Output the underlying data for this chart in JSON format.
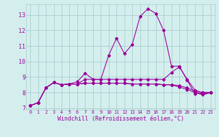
{
  "xlabel": "Windchill (Refroidissement éolien,°C)",
  "xlim": [
    -0.5,
    23.5
  ],
  "ylim": [
    6.9,
    13.7
  ],
  "yticks": [
    7,
    8,
    9,
    10,
    11,
    12,
    13
  ],
  "xticks": [
    0,
    1,
    2,
    3,
    4,
    5,
    6,
    7,
    8,
    9,
    10,
    11,
    12,
    13,
    14,
    15,
    16,
    17,
    18,
    19,
    20,
    21,
    22,
    23
  ],
  "bg_color": "#d4eeee",
  "grid_color": "#aacccc",
  "line_color": "#990099",
  "curves": [
    [
      7.15,
      7.35,
      8.3,
      8.65,
      8.5,
      8.55,
      8.55,
      8.85,
      8.85,
      8.85,
      10.4,
      11.5,
      10.5,
      11.1,
      12.9,
      13.4,
      13.1,
      12.0,
      9.7,
      9.7,
      8.8,
      7.9,
      8.0,
      8.0
    ],
    [
      7.15,
      7.35,
      8.3,
      8.65,
      8.5,
      8.55,
      8.7,
      9.25,
      8.85,
      8.85,
      8.85,
      8.85,
      8.85,
      8.85,
      8.85,
      8.85,
      8.85,
      8.85,
      9.3,
      9.65,
      8.85,
      8.15,
      8.0,
      8.0
    ],
    [
      7.15,
      7.35,
      8.3,
      8.65,
      8.5,
      8.55,
      8.55,
      8.6,
      8.6,
      8.6,
      8.6,
      8.6,
      8.6,
      8.55,
      8.55,
      8.55,
      8.55,
      8.5,
      8.5,
      8.45,
      8.3,
      8.1,
      7.9,
      8.0
    ],
    [
      7.15,
      7.35,
      8.3,
      8.65,
      8.5,
      8.55,
      8.55,
      8.6,
      8.6,
      8.6,
      8.6,
      8.6,
      8.6,
      8.55,
      8.55,
      8.55,
      8.55,
      8.5,
      8.5,
      8.35,
      8.2,
      8.0,
      7.85,
      8.0
    ]
  ],
  "xlabel_fontsize": 6,
  "ytick_fontsize": 6,
  "xtick_fontsize": 4.8,
  "linewidth": 0.8,
  "markersize": 2.0
}
